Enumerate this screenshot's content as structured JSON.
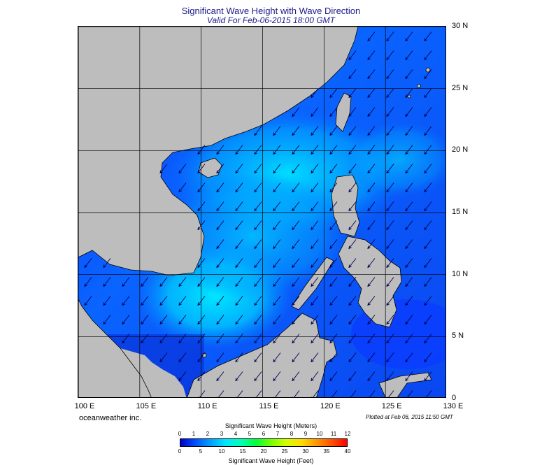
{
  "title": "Significant Wave Height with Wave Direction",
  "subtitle": "Valid For Feb-06-2015 18:00 GMT",
  "company": "oceanweather inc.",
  "plotted": "Plotted at Feb 06, 2015 11:50 GMT",
  "map": {
    "lon_labels": [
      "100 E",
      "105 E",
      "110 E",
      "115 E",
      "120 E",
      "125 E",
      "130 E"
    ],
    "lat_labels": [
      "30 N",
      "25 N",
      "20 N",
      "15 N",
      "10 N",
      "5 N",
      "0"
    ],
    "lon_range": [
      100,
      130
    ],
    "lat_range": [
      0,
      30
    ],
    "land_color": "#bdbdbd",
    "grid_color": "#000000",
    "arrow_color": "#000050",
    "wave_direction": "from north-east"
  },
  "colorbar": {
    "title_top": "Significant Wave Height (Meters)",
    "title_bottom": "Significant Wave Height (Feet)",
    "meters": [
      "0",
      "1",
      "2",
      "3",
      "4",
      "5",
      "6",
      "7",
      "8",
      "9",
      "10",
      "11",
      "12"
    ],
    "feet": [
      "0",
      "5",
      "10",
      "15",
      "20",
      "25",
      "30",
      "35",
      "40"
    ],
    "colors": [
      "#0000c8",
      "#0050ff",
      "#00a0ff",
      "#00e6ff",
      "#00ffb4",
      "#00ff3c",
      "#78ff00",
      "#d2ff00",
      "#ffdc00",
      "#ff9600",
      "#ff5000",
      "#ff0000"
    ]
  }
}
